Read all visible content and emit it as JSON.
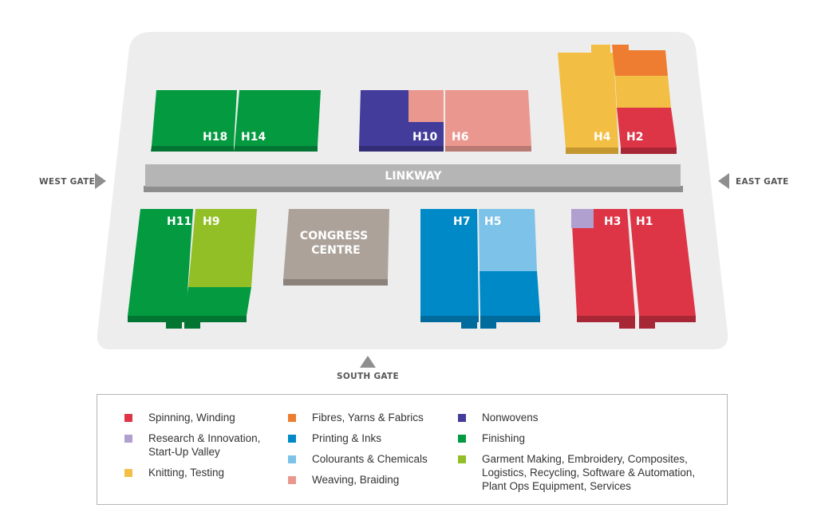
{
  "map": {
    "halls": [
      "H18",
      "H14",
      "H10",
      "H6",
      "H4",
      "H2",
      "H11",
      "H9",
      "H7",
      "H5",
      "H3",
      "H1"
    ],
    "congress_centre": "CONGRESS\nCENTRE",
    "linkway": "LINKWAY",
    "gates": {
      "west": "WEST GATE",
      "east": "EAST GATE",
      "south": "SOUTH GATE"
    }
  },
  "colors": {
    "spinning": "#dd3546",
    "research": "#b0a0cf",
    "knitting": "#f2be44",
    "fibres": "#ee7d31",
    "printing": "#0089c7",
    "colourants": "#7dc2e9",
    "weaving": "#ea988f",
    "nonwovens": "#433c9a",
    "finishing": "#049a3f",
    "garment": "#93bf26",
    "congress": "#aca29a",
    "linkway": "#b5b5b5",
    "ground": "#ededed"
  },
  "legend": [
    [
      {
        "label": "Spinning, Winding",
        "color": "#dd3546"
      },
      {
        "label": "Research & Innovation,\nStart-Up Valley",
        "color": "#b0a0cf"
      },
      {
        "label": "Knitting, Testing",
        "color": "#f2be44"
      }
    ],
    [
      {
        "label": "Fibres, Yarns & Fabrics",
        "color": "#ee7d31"
      },
      {
        "label": "Printing & Inks",
        "color": "#0089c7"
      },
      {
        "label": "Colourants & Chemicals",
        "color": "#7dc2e9"
      },
      {
        "label": "Weaving, Braiding",
        "color": "#ea988f"
      }
    ],
    [
      {
        "label": "Nonwovens",
        "color": "#433c9a"
      },
      {
        "label": "Finishing",
        "color": "#049a3f"
      },
      {
        "label": "Garment Making, Embroidery, Composites,\nLogistics, Recycling, Software & Automation,\nPlant Ops Equipment, Services",
        "color": "#93bf26"
      }
    ]
  ]
}
